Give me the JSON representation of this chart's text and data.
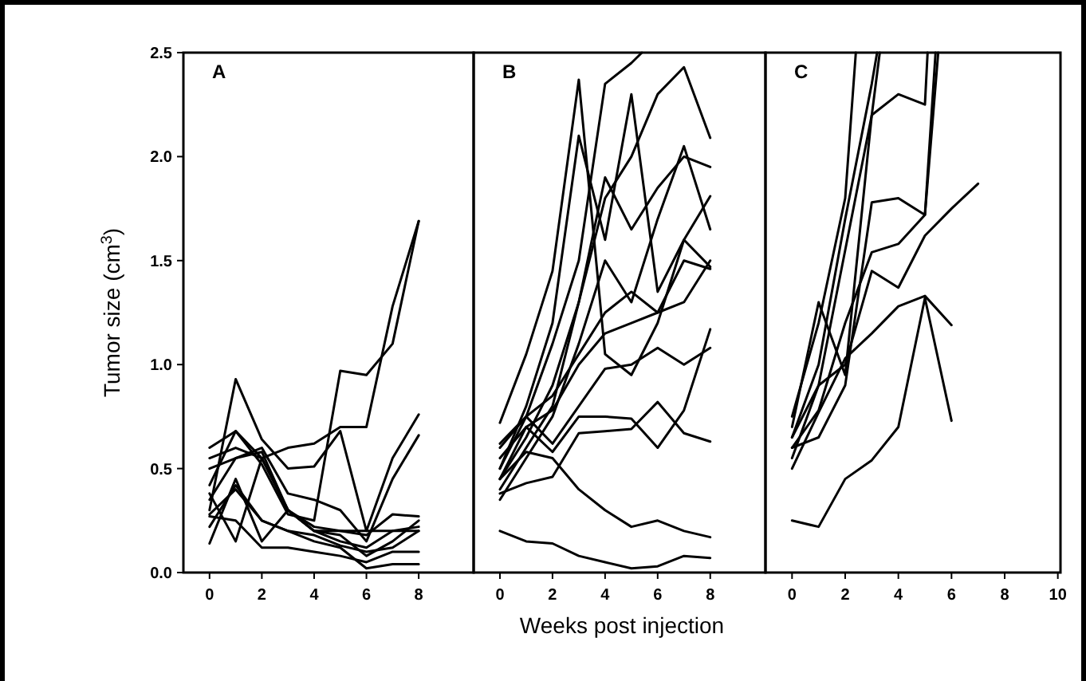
{
  "chart_data": [
    {
      "type": "line",
      "title": "A",
      "ylabel": "Tumor size (cm$^{3}$)",
      "line_style": "solid",
      "x": [
        0,
        1,
        2,
        3,
        4,
        5,
        6,
        7,
        8
      ],
      "xlim": [
        -1,
        10.1
      ],
      "ylim": [
        0,
        2.5
      ],
      "xticks": [
        0,
        2,
        4,
        6,
        8
      ],
      "yticks": [
        {
          "value": 0,
          "label": "0.0"
        },
        {
          "value": 0.5,
          "label": "0.5"
        },
        {
          "value": 1,
          "label": "1.0"
        },
        {
          "value": 1.5,
          "label": "1.5"
        },
        {
          "value": 2,
          "label": "2.0"
        },
        {
          "value": 2.5,
          "label": "2.5"
        }
      ],
      "series": [
        {
          "color": "#000000",
          "values": [
            0.3,
            0.93,
            0.64,
            0.5,
            0.51,
            0.68,
            0.2,
            0.55,
            0.76
          ]
        },
        {
          "color": "#000000",
          "values": [
            0.55,
            0.6,
            0.55,
            0.6,
            0.62,
            0.7,
            0.7,
            1.28,
            1.69
          ]
        },
        {
          "color": "#000000",
          "values": [
            0.42,
            0.68,
            0.52,
            0.28,
            0.25,
            0.97,
            0.95,
            1.1,
            1.69
          ]
        },
        {
          "color": "#000000",
          "values": [
            0.5,
            0.55,
            0.6,
            0.38,
            0.35,
            0.3,
            0.15,
            0.45,
            0.66
          ]
        },
        {
          "color": "#000000",
          "values": [
            0.35,
            0.55,
            0.58,
            0.3,
            0.22,
            0.2,
            0.18,
            0.28,
            0.27
          ]
        },
        {
          "color": "#000000",
          "values": [
            0.14,
            0.45,
            0.15,
            0.3,
            0.2,
            0.15,
            0.12,
            0.2,
            0.22
          ]
        },
        {
          "color": "#000000",
          "values": [
            0.27,
            0.25,
            0.12,
            0.12,
            0.1,
            0.08,
            0.05,
            0.1,
            0.1
          ]
        },
        {
          "color": "#000000",
          "values": [
            0.28,
            0.4,
            0.25,
            0.2,
            0.15,
            0.12,
            0.02,
            0.04,
            0.04
          ]
        },
        {
          "color": "#000000",
          "values": [
            0.6,
            0.68,
            0.55,
            0.3,
            0.2,
            0.2,
            0.2,
            0.2,
            0.2
          ]
        },
        {
          "color": "#000000",
          "values": [
            0.38,
            0.15,
            0.55,
            0.3,
            0.2,
            0.18,
            0.08,
            0.15,
            0.25
          ]
        },
        {
          "color": "#000000",
          "values": [
            0.22,
            0.42,
            0.25,
            0.2,
            0.18,
            0.13,
            0.1,
            0.12,
            0.2
          ]
        }
      ]
    },
    {
      "type": "line",
      "title": "B",
      "xlabel": "Weeks post injection",
      "line_style": "solid",
      "tick_labels": "x",
      "x": [
        0,
        1,
        2,
        3,
        4,
        5,
        6,
        7,
        8
      ],
      "xlim": [
        -1,
        10.1
      ],
      "ylim": [
        0,
        2.5
      ],
      "xticks": [
        0,
        2,
        4,
        6,
        8
      ],
      "series": [
        {
          "color": "#000000",
          "values": [
            0.2,
            0.15,
            0.14,
            0.08,
            0.05,
            0.02,
            0.03,
            0.08,
            0.07
          ]
        },
        {
          "color": "#000000",
          "values": [
            0.45,
            0.58,
            0.55,
            0.4,
            0.3,
            0.22,
            0.25,
            0.2,
            0.17
          ]
        },
        {
          "color": "#000000",
          "values": [
            0.38,
            0.43,
            0.46,
            0.67,
            0.68,
            0.69,
            0.82,
            0.67,
            0.63
          ]
        },
        {
          "color": "#000000",
          "values": [
            0.45,
            0.7,
            0.58,
            0.75,
            0.75,
            0.74,
            0.6,
            0.78,
            1.17
          ]
        },
        {
          "color": "#000000",
          "values": [
            0.5,
            0.75,
            0.62,
            0.8,
            0.98,
            1.0,
            1.08,
            1.0,
            1.08
          ]
        },
        {
          "color": "#000000",
          "values": [
            0.55,
            0.7,
            0.78,
            1.0,
            1.15,
            1.2,
            1.25,
            1.3,
            1.5
          ]
        },
        {
          "color": "#000000",
          "values": [
            0.62,
            0.75,
            0.85,
            1.05,
            1.25,
            1.35,
            1.25,
            1.5,
            1.46
          ]
        },
        {
          "color": "#000000",
          "values": [
            0.72,
            1.05,
            1.45,
            2.37,
            1.05,
            0.95,
            1.2,
            1.6,
            1.81
          ]
        },
        {
          "color": "#000000",
          "x": [
            0,
            1,
            2,
            3,
            4,
            5,
            5.4
          ],
          "values": [
            0.6,
            0.75,
            1.1,
            1.5,
            2.35,
            2.45,
            2.5
          ]
        },
        {
          "color": "#000000",
          "values": [
            0.5,
            0.8,
            1.2,
            2.1,
            1.6,
            2.3,
            1.35,
            1.6,
            1.47
          ]
        },
        {
          "color": "#000000",
          "values": [
            0.45,
            0.65,
            0.9,
            1.3,
            1.8,
            2.0,
            2.3,
            2.43,
            2.09
          ]
        },
        {
          "color": "#000000",
          "values": [
            0.4,
            0.6,
            0.8,
            1.3,
            1.9,
            1.65,
            1.85,
            2.0,
            1.95
          ]
        },
        {
          "color": "#000000",
          "values": [
            0.35,
            0.55,
            0.75,
            1.1,
            1.5,
            1.3,
            1.7,
            2.05,
            1.65
          ]
        }
      ]
    },
    {
      "type": "line",
      "title": "C",
      "line_style": "solid",
      "tick_labels": "x",
      "xlim": [
        -1,
        10.1
      ],
      "ylim": [
        0,
        2.5
      ],
      "xticks": [
        0,
        2,
        4,
        6,
        8,
        10
      ],
      "series": [
        {
          "color": "#000000",
          "x": [
            0,
            1,
            2,
            3,
            4,
            5,
            6
          ],
          "values": [
            0.25,
            0.22,
            0.45,
            0.54,
            0.7,
            1.32,
            0.73
          ]
        },
        {
          "color": "#000000",
          "x": [
            0,
            1,
            2,
            3,
            4,
            5,
            6
          ],
          "values": [
            0.5,
            0.77,
            1.03,
            1.15,
            1.28,
            1.33,
            1.19
          ]
        },
        {
          "color": "#000000",
          "x": [
            0,
            1,
            2,
            3,
            4,
            5,
            6,
            7
          ],
          "values": [
            0.65,
            0.9,
            1.0,
            1.45,
            1.37,
            1.62,
            1.75,
            1.87
          ]
        },
        {
          "color": "#000000",
          "x": [
            0,
            1,
            2,
            3,
            4,
            5,
            5.4
          ],
          "values": [
            0.6,
            0.78,
            1.2,
            1.54,
            1.58,
            1.72,
            2.5
          ]
        },
        {
          "color": "#000000",
          "x": [
            0,
            1,
            2,
            3,
            4,
            5,
            5.5
          ],
          "values": [
            0.6,
            0.65,
            0.9,
            1.78,
            1.8,
            1.72,
            2.5
          ]
        },
        {
          "color": "#000000",
          "x": [
            0,
            1,
            2,
            3,
            3.3
          ],
          "values": [
            0.7,
            1.3,
            0.95,
            2.2,
            2.5
          ]
        },
        {
          "color": "#000000",
          "x": [
            0,
            1,
            2,
            2.4
          ],
          "values": [
            0.75,
            1.2,
            1.8,
            2.5
          ]
        },
        {
          "color": "#000000",
          "x": [
            0,
            1,
            2,
            3,
            3.2
          ],
          "values": [
            0.65,
            1.0,
            1.7,
            2.35,
            2.5
          ]
        },
        {
          "color": "#000000",
          "x": [
            0,
            1,
            2,
            3,
            4,
            5,
            5.1
          ],
          "values": [
            0.55,
            0.9,
            1.55,
            2.2,
            2.3,
            2.25,
            2.5
          ]
        }
      ]
    }
  ]
}
